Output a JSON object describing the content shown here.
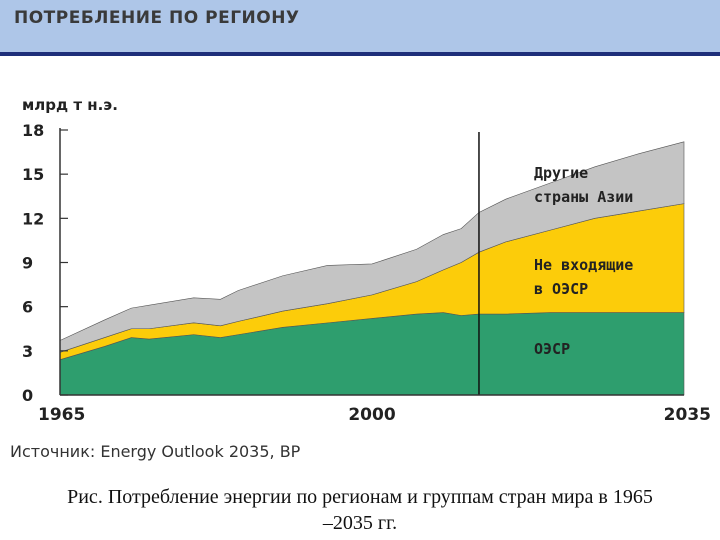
{
  "header": {
    "title": "ПОТРЕБЛЕНИЕ ПО РЕГИОНУ"
  },
  "chart_data": {
    "type": "area",
    "stacked": true,
    "ylabel": "млрд т н.э.",
    "y_ticks": [
      "0",
      "3",
      "6",
      "9",
      "12",
      "15",
      "18"
    ],
    "ylim": [
      0,
      18
    ],
    "x_ticks": [
      "1965",
      "2000",
      "2035"
    ],
    "xlim": [
      1965,
      2035
    ],
    "divider_year": 2012,
    "x": [
      1965,
      1970,
      1973,
      1975,
      1980,
      1983,
      1985,
      1990,
      1995,
      2000,
      2005,
      2008,
      2010,
      2012,
      2015,
      2020,
      2025,
      2030,
      2035
    ],
    "series": [
      {
        "name": "ОЭСР",
        "label_lines": [
          "ОЭСР"
        ],
        "color": "#2e9e6e",
        "values": [
          2.4,
          3.3,
          3.9,
          3.8,
          4.1,
          3.9,
          4.1,
          4.6,
          4.9,
          5.2,
          5.5,
          5.6,
          5.4,
          5.5,
          5.5,
          5.6,
          5.6,
          5.6,
          5.6
        ]
      },
      {
        "name": "Не входящие в ОЭСР",
        "label_lines": [
          "Не входящие",
          "в ОЭСР"
        ],
        "color": "#fccc0a",
        "values": [
          0.5,
          0.6,
          0.6,
          0.7,
          0.8,
          0.8,
          0.9,
          1.1,
          1.3,
          1.6,
          2.2,
          2.9,
          3.6,
          4.2,
          4.9,
          5.6,
          6.4,
          6.9,
          7.4
        ]
      },
      {
        "name": "Другие страны Азии",
        "label_lines": [
          "Другие",
          "страны Азии"
        ],
        "color": "#c4c4c4",
        "values": [
          0.8,
          1.2,
          1.4,
          1.6,
          1.7,
          1.8,
          2.1,
          2.4,
          2.6,
          2.1,
          2.2,
          2.4,
          2.3,
          2.7,
          2.9,
          3.2,
          3.5,
          3.9,
          4.2
        ]
      }
    ]
  },
  "source": "Источник: Energy Outlook 2035, BP",
  "caption": {
    "line1": "Рис. Потребление энергии по регионам и группам стран мира в 1965",
    "line2": "–2035 гг."
  }
}
